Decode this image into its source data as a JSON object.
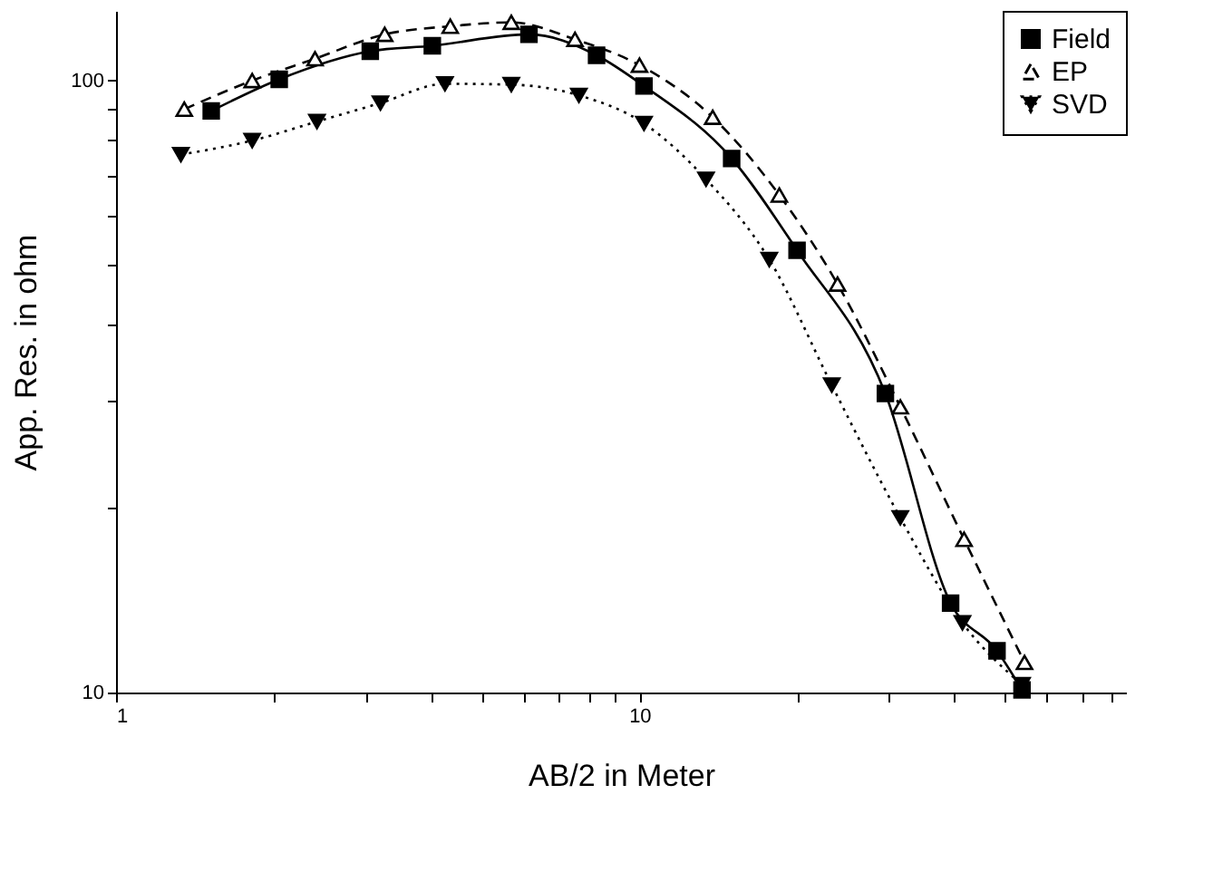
{
  "chart_data": {
    "type": "line",
    "xlabel": "AB/2 in Meter",
    "ylabel": "App. Res. in ohm",
    "log": "xy",
    "xlim": [
      1,
      85
    ],
    "ylim": [
      10,
      130
    ],
    "xticks": [
      1,
      {
        "value": 2,
        "label": null
      },
      {
        "value": 3,
        "label": null
      },
      {
        "value": 4,
        "label": null
      },
      {
        "value": 5,
        "label": null
      },
      {
        "value": 6,
        "label": null
      },
      {
        "value": 7,
        "label": null
      },
      {
        "value": 8,
        "label": null
      },
      {
        "value": 9,
        "label": null
      },
      10,
      {
        "value": 20,
        "label": null
      },
      {
        "value": 30,
        "label": null
      },
      {
        "value": 40,
        "label": null
      },
      {
        "value": 50,
        "label": null
      },
      {
        "value": 60,
        "label": null
      },
      {
        "value": 70,
        "label": null
      },
      {
        "value": 80,
        "label": null
      }
    ],
    "yticks": [
      10,
      {
        "value": 20,
        "label": null
      },
      {
        "value": 30,
        "label": null
      },
      {
        "value": 40,
        "label": null
      },
      {
        "value": 50,
        "label": null
      },
      {
        "value": 60,
        "label": null
      },
      {
        "value": 70,
        "label": null
      },
      {
        "value": 80,
        "label": null
      },
      {
        "value": 90,
        "label": null
      },
      100
    ],
    "grid": false,
    "legend": "top right",
    "series": [
      {
        "name": "Field",
        "color": "#000000",
        "line_style": "solid",
        "marker": "square",
        "x": [
          1.52,
          2.05,
          3.06,
          4.02,
          6.15,
          8.28,
          10.2,
          15.0,
          20.0,
          29.5,
          39.3,
          48.2,
          53.8
        ],
        "values": [
          89.2,
          100.5,
          111.7,
          114,
          119,
          110,
          98,
          74.6,
          52.8,
          30.8,
          14.0,
          11.7,
          10.1
        ]
      },
      {
        "name": "EP",
        "color": "#000000",
        "line_style": "dashed",
        "marker": "triangle",
        "x": [
          1.35,
          1.82,
          2.4,
          3.26,
          4.35,
          5.69,
          7.53,
          10.0,
          13.8,
          18.5,
          23.9,
          31.5,
          41.7,
          54.4
        ],
        "values": [
          89.8,
          100,
          108.6,
          119,
          122.7,
          124.5,
          116.8,
          106,
          87.1,
          65,
          46.5,
          29.3,
          17.8,
          11.2
        ]
      },
      {
        "name": "SVD",
        "color": "#000000",
        "line_style": "dotted",
        "marker": "triangle-down",
        "x": [
          1.33,
          1.82,
          2.42,
          3.2,
          4.25,
          5.69,
          7.66,
          10.2,
          13.4,
          17.7,
          23.3,
          31.5,
          41.4,
          53.8
        ],
        "values": [
          75.7,
          79.8,
          85.7,
          91.9,
          98.8,
          98.5,
          94.6,
          85.1,
          69,
          51,
          31.8,
          19.3,
          13,
          10.3
        ]
      }
    ]
  }
}
